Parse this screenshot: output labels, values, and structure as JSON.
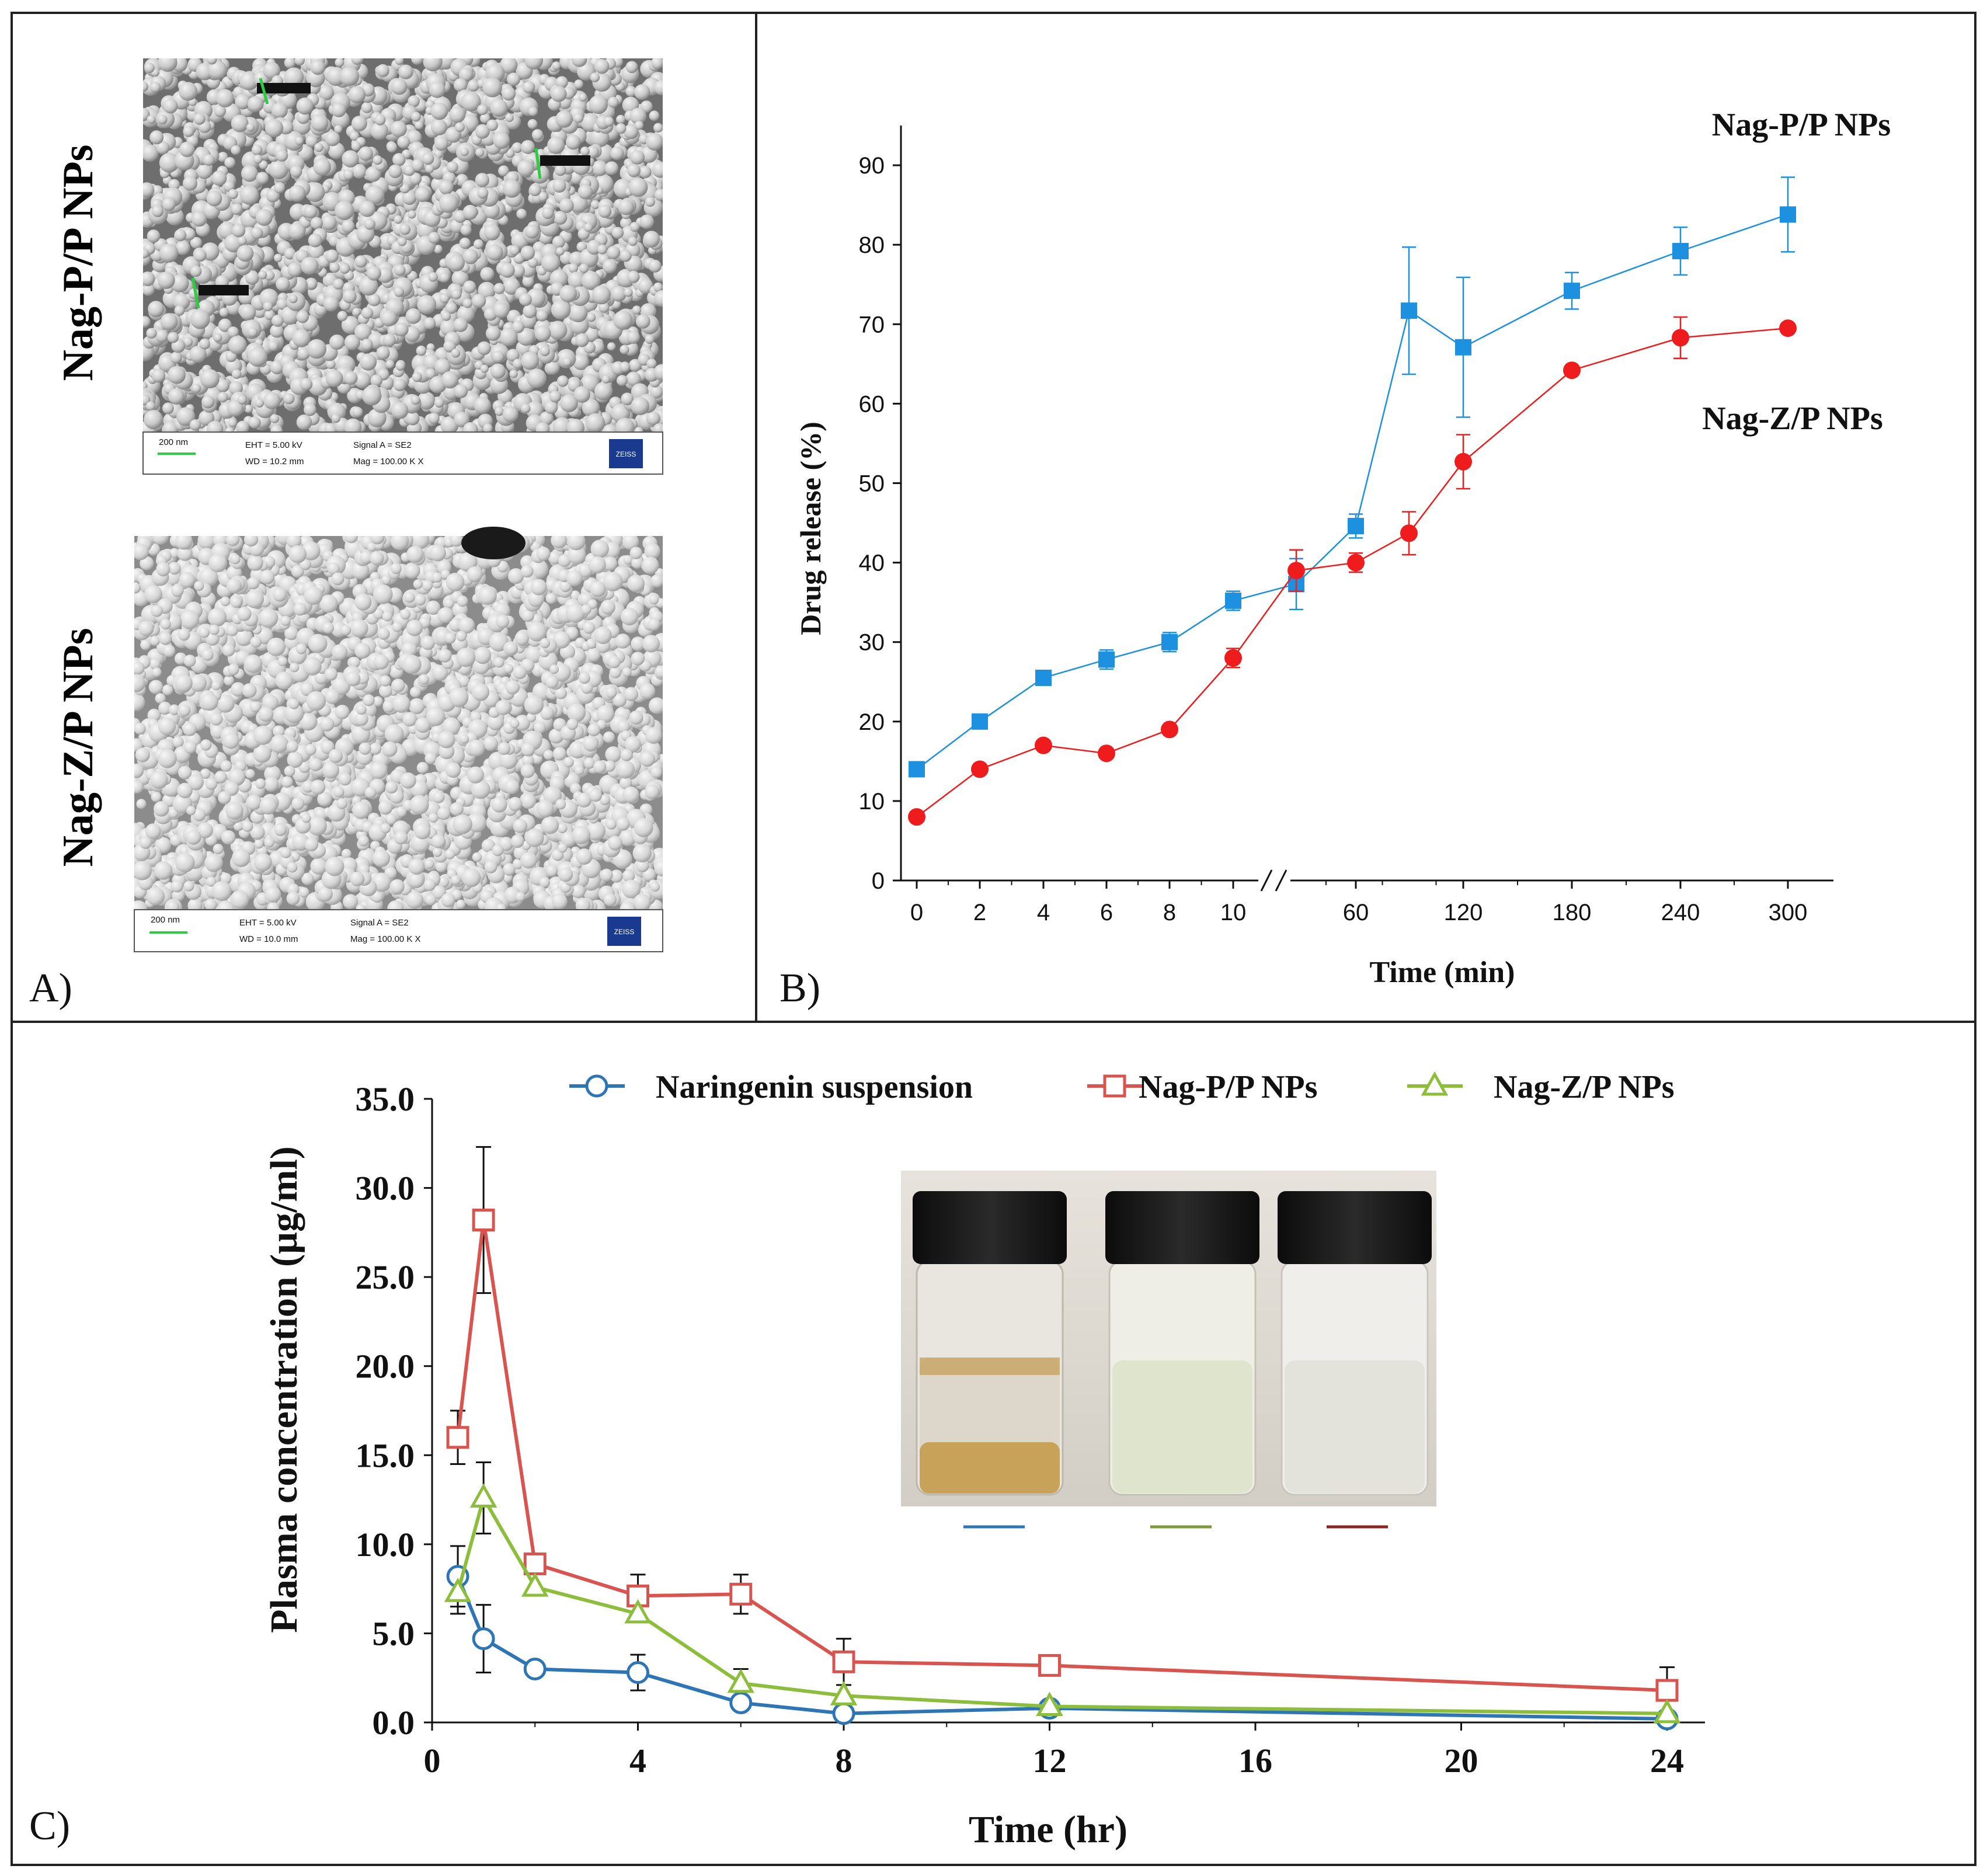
{
  "panels": {
    "a_label": "A)",
    "b_label": "B)",
    "c_label": "C)"
  },
  "panel_a": {
    "row_labels": [
      "Nag-P/P NPs",
      "Nag-Z/P NPs"
    ],
    "sem_images": [
      {
        "scale_bar": "200 nm",
        "eht": "EHT = 5.00 kV",
        "wd": "WD = 10.2 mm",
        "signal": "Signal A = SE2",
        "mag": "Mag = 100.00 K X",
        "brand": "ZEISS"
      },
      {
        "scale_bar": "200 nm",
        "eht": "EHT = 5.00 kV",
        "wd": "WD = 10.0 mm",
        "signal": "Signal A = SE2",
        "mag": "Mag = 100.00 K X",
        "brand": "ZEISS"
      }
    ],
    "colors": {
      "sem_background": "#8a8a8a",
      "particle": "#d6d6d6",
      "measure_mark": "#2ecc40"
    }
  },
  "chart_data": [
    {
      "type": "line",
      "xlabel": "Time (min)",
      "ylabel": "Drug release (%)",
      "ylim": [
        0,
        95
      ],
      "yticks": [
        0,
        10,
        20,
        30,
        40,
        50,
        60,
        70,
        80,
        90
      ],
      "x_axis_break": true,
      "categories": [
        "0",
        "2",
        "4",
        "6",
        "8",
        "10",
        "30",
        "60",
        "90",
        "120",
        "180",
        "240",
        "300"
      ],
      "x_tick_labels": [
        "0",
        "2",
        "4",
        "6",
        "8",
        "10",
        "60",
        "120",
        "180",
        "240",
        "300"
      ],
      "series": [
        {
          "name": "Nag-P/P NPs",
          "color": "#1e90e0",
          "marker": "square",
          "values": [
            14,
            20,
            25.5,
            27.8,
            30,
            35.2,
            37.3,
            44.6,
            71.7,
            67.1,
            74.2,
            79.2,
            83.8
          ],
          "errors": [
            0.8,
            0.8,
            0.8,
            1.2,
            1.2,
            1.2,
            3.2,
            1.5,
            8,
            8.8,
            2.3,
            3,
            4.7
          ]
        },
        {
          "name": "Nag-Z/P NPs",
          "color": "#ee1c1c",
          "marker": "circle",
          "values": [
            8,
            14,
            17,
            16,
            19,
            28,
            39,
            40,
            43.7,
            52.7,
            64.2,
            68.3,
            69.5
          ],
          "errors": [
            0.4,
            0.4,
            0.4,
            0.4,
            0.4,
            1.2,
            2.6,
            1.2,
            2.7,
            3.4,
            0.4,
            2.6,
            0.4
          ]
        }
      ],
      "annotations": [
        "Nag-P/P NPs",
        "Nag-Z/P NPs"
      ]
    },
    {
      "type": "line",
      "xlabel": "Time (hr)",
      "ylabel": "Plasma concentration (µg/ml)",
      "xlim": [
        0,
        25.5
      ],
      "ylim": [
        0,
        35
      ],
      "xticks": [
        0,
        4,
        8,
        12,
        16,
        20,
        24
      ],
      "yticks": [
        "0.0",
        "5.0",
        "10.0",
        "15.0",
        "20.0",
        "25.0",
        "30.0",
        "35.0"
      ],
      "x": [
        0.5,
        1,
        2,
        4,
        6,
        8,
        12,
        24
      ],
      "series": [
        {
          "name": "Naringenin suspension",
          "color": "#2e75b6",
          "marker": "circle",
          "values": [
            8.2,
            4.7,
            3.0,
            2.8,
            1.1,
            0.5,
            0.8,
            0.2
          ],
          "errors": [
            1.7,
            1.9,
            0,
            1.0,
            0,
            0,
            0,
            0
          ]
        },
        {
          "name": "Nag-P/P NPs",
          "color": "#d9534f",
          "marker": "square",
          "values": [
            16.0,
            28.2,
            8.9,
            7.1,
            7.2,
            3.4,
            3.2,
            1.8
          ],
          "errors": [
            1.5,
            4.1,
            0,
            1.2,
            1.1,
            1.3,
            0,
            1.3
          ]
        },
        {
          "name": "Nag-Z/P NPs",
          "color": "#8cbe3c",
          "marker": "triangle",
          "values": [
            7.3,
            12.6,
            7.6,
            6.1,
            2.2,
            1.5,
            0.9,
            0.5
          ],
          "errors": [
            1.2,
            2.0,
            0,
            0,
            0.8,
            0,
            0,
            0
          ]
        }
      ],
      "inset_photo": {
        "vial_line_colors": [
          "#2e75b6",
          "#7a9a3a",
          "#8b2323"
        ]
      }
    }
  ]
}
